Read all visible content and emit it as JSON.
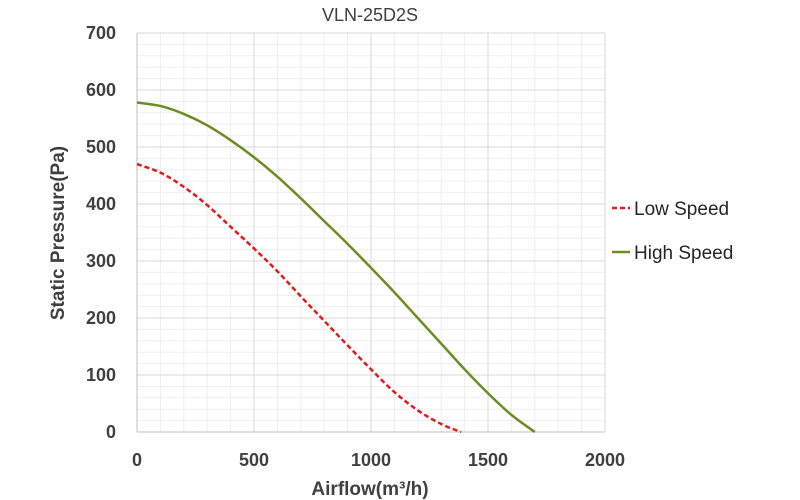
{
  "chart_data": {
    "type": "line",
    "title": "VLN-25D2S",
    "xlabel": "Airflow(m³/h)",
    "ylabel": "Static Pressure(Pa)",
    "xlim": [
      0,
      2000
    ],
    "ylim": [
      0,
      700
    ],
    "x_ticks": [
      "0",
      "500",
      "1000",
      "1500",
      "2000"
    ],
    "y_ticks": [
      "0",
      "100",
      "200",
      "300",
      "400",
      "500",
      "600",
      "700"
    ],
    "grid": true,
    "legend_position": "right",
    "series": [
      {
        "name": "Low Speed",
        "color": "#e31a1c",
        "style": "dashed",
        "x": [
          0,
          100,
          200,
          300,
          400,
          500,
          600,
          700,
          800,
          900,
          1000,
          1100,
          1200,
          1300,
          1385
        ],
        "y": [
          470,
          455,
          430,
          398,
          360,
          322,
          282,
          238,
          195,
          152,
          110,
          70,
          38,
          14,
          0
        ]
      },
      {
        "name": "High Speed",
        "color": "#6b8e23",
        "style": "solid",
        "x": [
          0,
          100,
          200,
          300,
          400,
          500,
          600,
          700,
          800,
          900,
          1000,
          1100,
          1200,
          1300,
          1400,
          1500,
          1600,
          1700
        ],
        "y": [
          578,
          572,
          558,
          538,
          512,
          482,
          448,
          410,
          370,
          330,
          288,
          245,
          200,
          155,
          110,
          68,
          30,
          0
        ]
      }
    ]
  }
}
